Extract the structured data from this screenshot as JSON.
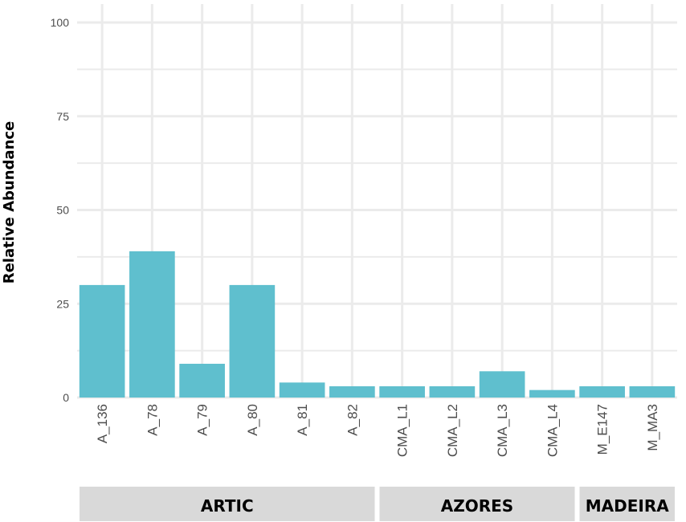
{
  "chart_data": {
    "type": "bar",
    "ylabel": "Relative Abundance",
    "xlabel": "",
    "ylim": [
      0,
      100
    ],
    "yticks": [
      0,
      25,
      50,
      75,
      100
    ],
    "grid": true,
    "bar_color": "#5fbfce",
    "categories": [
      "A_136",
      "A_78",
      "A_79",
      "A_80",
      "A_81",
      "A_82",
      "CMA_L1",
      "CMA_L2",
      "CMA_L3",
      "CMA_L4",
      "M_E147",
      "M_MA3"
    ],
    "values": [
      30,
      39,
      9,
      30,
      4,
      3,
      3,
      3,
      7,
      2,
      3,
      3
    ],
    "groups": [
      {
        "label": "ARTIC",
        "categories": [
          "A_136",
          "A_78",
          "A_79",
          "A_80",
          "A_81",
          "A_82"
        ]
      },
      {
        "label": "AZORES",
        "categories": [
          "CMA_L1",
          "CMA_L2",
          "CMA_L3",
          "CMA_L4"
        ]
      },
      {
        "label": "MADEIRA",
        "categories": [
          "M_E147",
          "M_MA3"
        ]
      }
    ],
    "group_strip_color": "#d9d9d9"
  }
}
